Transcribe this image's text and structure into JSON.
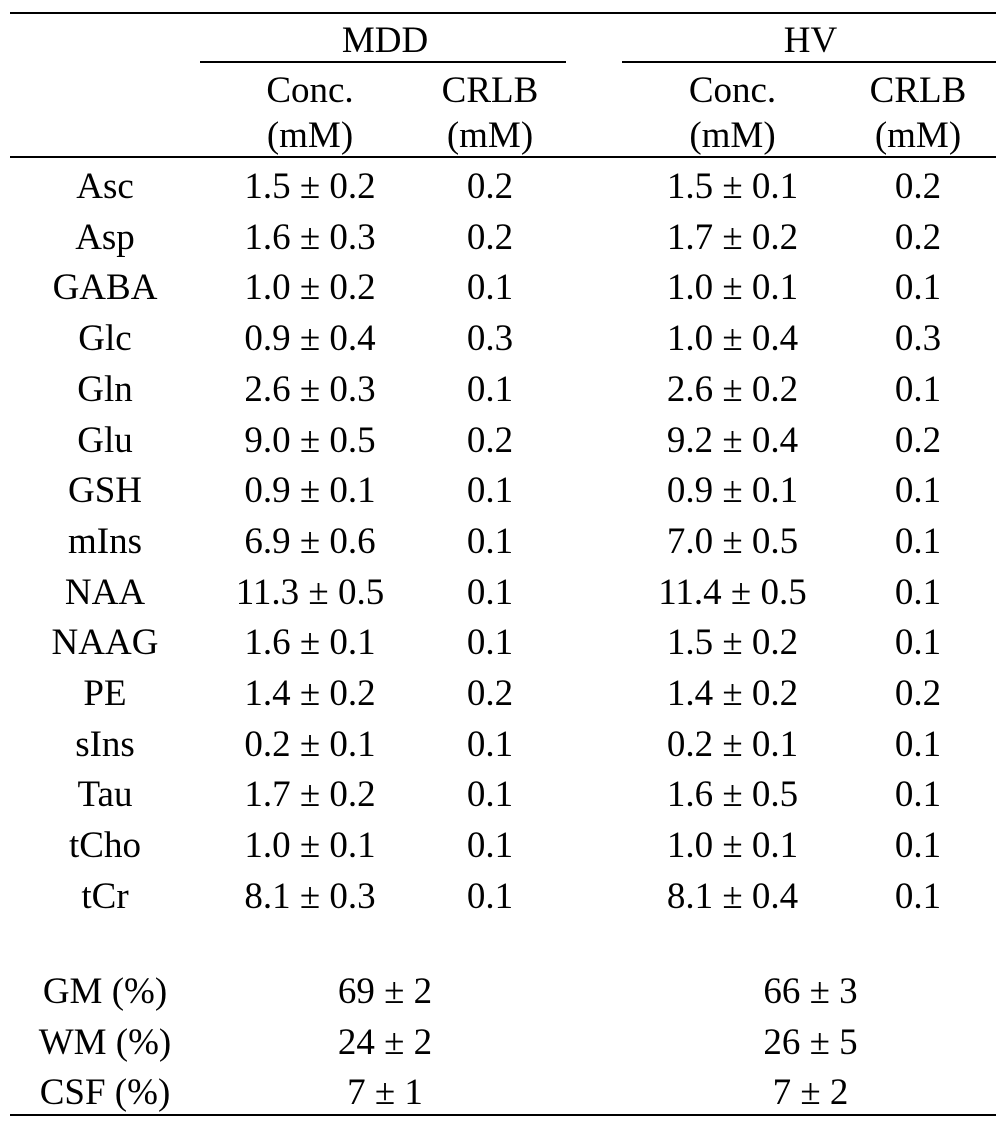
{
  "header": {
    "group_mdd": "MDD",
    "group_hv": "HV",
    "conc_label": "Conc.",
    "crlb_label": "CRLB",
    "unit_label": "(mM)"
  },
  "rows": [
    {
      "name": "Asc",
      "mdd_conc": "1.5 ± 0.2",
      "mdd_crlb": "0.2",
      "hv_conc": "1.5 ± 0.1",
      "hv_crlb": "0.2"
    },
    {
      "name": "Asp",
      "mdd_conc": "1.6 ± 0.3",
      "mdd_crlb": "0.2",
      "hv_conc": "1.7 ± 0.2",
      "hv_crlb": "0.2"
    },
    {
      "name": "GABA",
      "mdd_conc": "1.0 ± 0.2",
      "mdd_crlb": "0.1",
      "hv_conc": "1.0 ± 0.1",
      "hv_crlb": "0.1"
    },
    {
      "name": "Glc",
      "mdd_conc": "0.9 ± 0.4",
      "mdd_crlb": "0.3",
      "hv_conc": "1.0 ± 0.4",
      "hv_crlb": "0.3"
    },
    {
      "name": "Gln",
      "mdd_conc": "2.6 ± 0.3",
      "mdd_crlb": "0.1",
      "hv_conc": "2.6 ± 0.2",
      "hv_crlb": "0.1"
    },
    {
      "name": "Glu",
      "mdd_conc": "9.0 ± 0.5",
      "mdd_crlb": "0.2",
      "hv_conc": "9.2 ± 0.4",
      "hv_crlb": "0.2"
    },
    {
      "name": "GSH",
      "mdd_conc": "0.9 ± 0.1",
      "mdd_crlb": "0.1",
      "hv_conc": "0.9 ± 0.1",
      "hv_crlb": "0.1"
    },
    {
      "name": "mIns",
      "mdd_conc": "6.9 ± 0.6",
      "mdd_crlb": "0.1",
      "hv_conc": "7.0 ± 0.5",
      "hv_crlb": "0.1"
    },
    {
      "name": "NAA",
      "mdd_conc": "11.3 ± 0.5",
      "mdd_crlb": "0.1",
      "hv_conc": "11.4 ± 0.5",
      "hv_crlb": "0.1"
    },
    {
      "name": "NAAG",
      "mdd_conc": "1.6 ± 0.1",
      "mdd_crlb": "0.1",
      "hv_conc": "1.5 ± 0.2",
      "hv_crlb": "0.1"
    },
    {
      "name": "PE",
      "mdd_conc": "1.4 ± 0.2",
      "mdd_crlb": "0.2",
      "hv_conc": "1.4 ± 0.2",
      "hv_crlb": "0.2"
    },
    {
      "name": "sIns",
      "mdd_conc": "0.2 ± 0.1",
      "mdd_crlb": "0.1",
      "hv_conc": "0.2 ± 0.1",
      "hv_crlb": "0.1"
    },
    {
      "name": "Tau",
      "mdd_conc": "1.7 ± 0.2",
      "mdd_crlb": "0.1",
      "hv_conc": "1.6 ± 0.5",
      "hv_crlb": "0.1"
    },
    {
      "name": "tCho",
      "mdd_conc": "1.0 ± 0.1",
      "mdd_crlb": "0.1",
      "hv_conc": "1.0 ± 0.1",
      "hv_crlb": "0.1"
    },
    {
      "name": "tCr",
      "mdd_conc": "8.1 ± 0.3",
      "mdd_crlb": "0.1",
      "hv_conc": "8.1 ± 0.4",
      "hv_crlb": "0.1"
    }
  ],
  "tissue_rows": [
    {
      "name": "GM (%)",
      "mdd": "69 ± 2",
      "hv": "66 ± 3"
    },
    {
      "name": "WM (%)",
      "mdd": "24 ± 2",
      "hv": "26 ± 5"
    },
    {
      "name": "CSF (%)",
      "mdd": "7 ± 1",
      "hv": "7 ± 2"
    }
  ]
}
